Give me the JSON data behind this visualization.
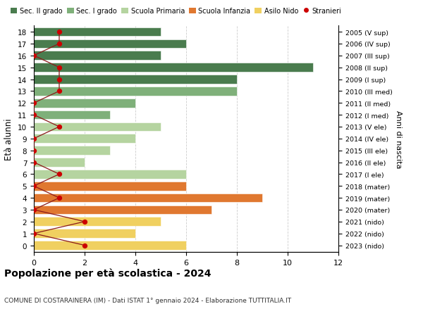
{
  "ages": [
    18,
    17,
    16,
    15,
    14,
    13,
    12,
    11,
    10,
    9,
    8,
    7,
    6,
    5,
    4,
    3,
    2,
    1,
    0
  ],
  "right_labels": [
    "2005 (V sup)",
    "2006 (IV sup)",
    "2007 (III sup)",
    "2008 (II sup)",
    "2009 (I sup)",
    "2010 (III med)",
    "2011 (II med)",
    "2012 (I med)",
    "2013 (V ele)",
    "2014 (IV ele)",
    "2015 (III ele)",
    "2016 (II ele)",
    "2017 (I ele)",
    "2018 (mater)",
    "2019 (mater)",
    "2020 (mater)",
    "2021 (nido)",
    "2022 (nido)",
    "2023 (nido)"
  ],
  "bar_values": [
    5,
    6,
    5,
    11,
    8,
    8,
    4,
    3,
    5,
    4,
    3,
    2,
    6,
    6,
    9,
    7,
    5,
    4,
    6
  ],
  "bar_colors": [
    "#4a7c4e",
    "#4a7c4e",
    "#4a7c4e",
    "#4a7c4e",
    "#4a7c4e",
    "#7fb07a",
    "#7fb07a",
    "#7fb07a",
    "#b5d4a0",
    "#b5d4a0",
    "#b5d4a0",
    "#b5d4a0",
    "#b5d4a0",
    "#e07830",
    "#e07830",
    "#e07830",
    "#f0d060",
    "#f0d060",
    "#f0d060"
  ],
  "stranieri_x": [
    1,
    1,
    0,
    1,
    1,
    1,
    0,
    0,
    1,
    0,
    0,
    0,
    1,
    0,
    1,
    0,
    2,
    0,
    2
  ],
  "legend_labels": [
    "Sec. II grado",
    "Sec. I grado",
    "Scuola Primaria",
    "Scuola Infanzia",
    "Asilo Nido",
    "Stranieri"
  ],
  "legend_colors": [
    "#4a7c4e",
    "#7fb07a",
    "#b5d4a0",
    "#e07830",
    "#f0d060",
    "#cc0000"
  ],
  "title": "Popolazione per età scolastica - 2024",
  "subtitle": "COMUNE DI COSTARAINERA (IM) - Dati ISTAT 1° gennaio 2024 - Elaborazione TUTTITALIA.IT",
  "ylabel": "Età alunni",
  "right_ylabel": "Anni di nascita",
  "xlim": [
    0,
    12
  ],
  "xticks": [
    0,
    2,
    4,
    6,
    8,
    10,
    12
  ],
  "bar_height": 0.75,
  "background_color": "#ffffff",
  "grid_color": "#cccccc",
  "stranieri_line_color": "#8b1a1a",
  "stranieri_dot_color": "#cc0000"
}
